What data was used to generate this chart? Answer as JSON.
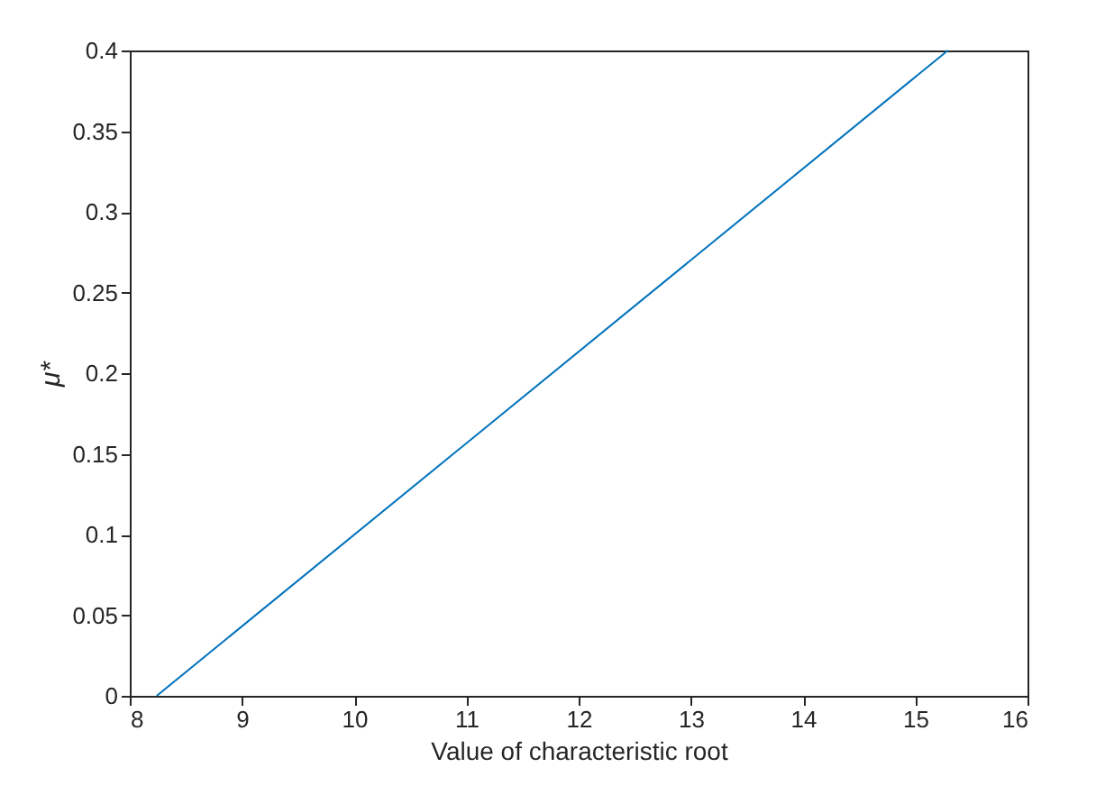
{
  "chart_data": {
    "type": "line",
    "xlabel": "Value of characteristic root",
    "ylabel": "μ*",
    "x": [
      8.24,
      15.29
    ],
    "series": [
      {
        "color": "#0072bd",
        "values": [
          0,
          0.4
        ]
      }
    ],
    "xlim": [
      8,
      16
    ],
    "xticks": [
      8,
      9,
      10,
      11,
      12,
      13,
      14,
      15,
      16
    ],
    "ylim": [
      0,
      0.4
    ],
    "yticks": [
      0,
      0.05,
      0.1,
      0.15,
      0.2,
      0.25,
      0.3,
      0.35,
      0.4
    ],
    "grid": false,
    "marker": "none",
    "line_style": "solid"
  }
}
